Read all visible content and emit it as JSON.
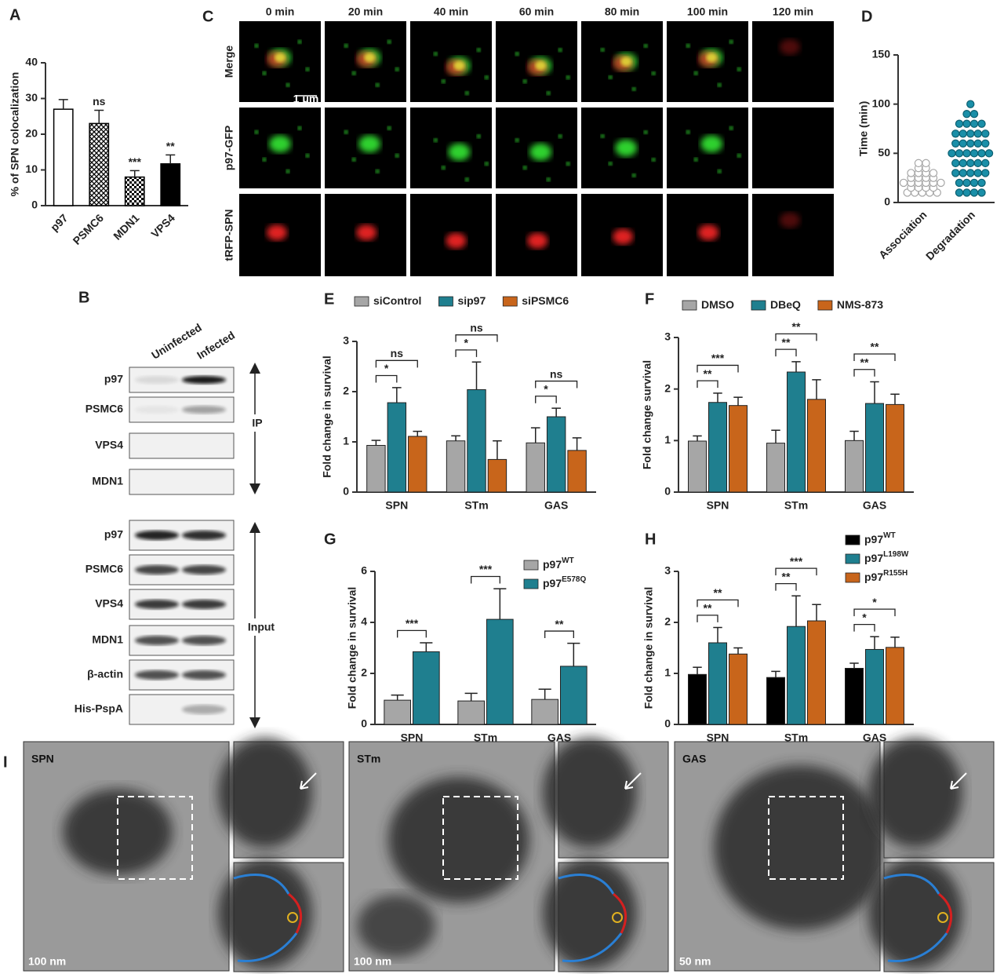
{
  "panel_labels": [
    "A",
    "B",
    "C",
    "D",
    "E",
    "F",
    "G",
    "H",
    "I"
  ],
  "blot": {
    "columns": [
      "Uninfected",
      "Infected"
    ],
    "ip_rows": [
      "p97",
      "PSMC6",
      "VPS4",
      "MDN1"
    ],
    "input_rows": [
      "p97",
      "PSMC6",
      "VPS4",
      "MDN1",
      "β-actin",
      "His-PspA"
    ],
    "ip_label": "IP",
    "input_label": "Input"
  },
  "microscopy": {
    "times": [
      "0 min",
      "20 min",
      "40 min",
      "60 min",
      "80 min",
      "100 min",
      "120 min"
    ],
    "rows": [
      "Merge",
      "p97-GFP",
      "tRFP-SPN"
    ],
    "scale_bar": "1 μm"
  },
  "electron_microscopy": {
    "panels": [
      {
        "label": "SPN",
        "scale_bar": "100 nm"
      },
      {
        "label": "STm",
        "scale_bar": "100 nm"
      },
      {
        "label": "GAS",
        "scale_bar": "50 nm"
      }
    ]
  },
  "chart_data": [
    {
      "type": "bar",
      "ylabel": "% of SPN colocalization",
      "categories": [
        "p97",
        "PSMC6",
        "MDN1",
        "VPS4"
      ],
      "values": [
        27,
        23,
        8,
        11.7
      ],
      "errors": [
        2.7,
        3.7,
        1.8,
        2.5
      ],
      "color": "#000000",
      "patterns": [
        "none",
        "crosshatch",
        "checker",
        "solid"
      ],
      "annotations": [
        {
          "category": "PSMC6",
          "text": "ns"
        },
        {
          "category": "MDN1",
          "text": "***"
        },
        {
          "category": "VPS4",
          "text": "**"
        }
      ],
      "ylim": [
        0,
        40
      ],
      "yticks": [
        0,
        10,
        20,
        30,
        40
      ],
      "rotate_labels": true
    },
    {
      "type": "strip",
      "ylabel": "Time (min)",
      "categories": [
        "Association",
        "Degradation"
      ],
      "values": [
        [
          10,
          10,
          10,
          10,
          10,
          15,
          15,
          15,
          15,
          20,
          20,
          20,
          20,
          20,
          20,
          25,
          25,
          25,
          25,
          30,
          30,
          30,
          30,
          35,
          35,
          40,
          40
        ],
        [
          10,
          10,
          10,
          10,
          20,
          20,
          20,
          20,
          30,
          30,
          30,
          30,
          30,
          40,
          40,
          40,
          40,
          40,
          50,
          50,
          50,
          50,
          50,
          50,
          60,
          60,
          60,
          60,
          60,
          70,
          70,
          70,
          70,
          70,
          80,
          80,
          80,
          80,
          90,
          90,
          100
        ]
      ],
      "colors": [
        "#a6a6a6",
        "#1a8fa8"
      ],
      "markers": [
        "open",
        "filled"
      ],
      "ylim": [
        0,
        150
      ],
      "yticks": [
        0,
        50,
        100,
        150
      ],
      "rotate_labels": true
    },
    {
      "type": "bar",
      "ylabel": "Fold change in survival",
      "categories": [
        "SPN",
        "STm",
        "GAS"
      ],
      "series": [
        {
          "name": "siControl",
          "color": "#a6a6a6",
          "values": [
            0.93,
            1.02,
            0.98
          ],
          "errors": [
            0.1,
            0.1,
            0.3
          ]
        },
        {
          "name": "sip97",
          "color": "#1f7f8f",
          "values": [
            1.78,
            2.04,
            1.5
          ],
          "errors": [
            0.3,
            0.55,
            0.17
          ]
        },
        {
          "name": "siPSMC6",
          "color": "#c8651b",
          "values": [
            1.11,
            0.65,
            0.83
          ],
          "errors": [
            0.1,
            0.37,
            0.25
          ]
        }
      ],
      "brackets": [
        {
          "category": "SPN",
          "from": "siControl",
          "to": "sip97",
          "label": "*"
        },
        {
          "category": "SPN",
          "from": "siControl",
          "to": "siPSMC6",
          "label": "ns"
        },
        {
          "category": "STm",
          "from": "siControl",
          "to": "sip97",
          "label": "*"
        },
        {
          "category": "STm",
          "from": "siControl",
          "to": "siPSMC6",
          "label": "ns"
        },
        {
          "category": "GAS",
          "from": "siControl",
          "to": "sip97",
          "label": "*"
        },
        {
          "category": "GAS",
          "from": "siControl",
          "to": "siPSMC6",
          "label": "ns"
        }
      ],
      "ylim": [
        0,
        3
      ],
      "yticks": [
        0,
        1,
        2,
        3
      ],
      "legend": "top"
    },
    {
      "type": "bar",
      "ylabel": "Fold change survival",
      "categories": [
        "SPN",
        "STm",
        "GAS"
      ],
      "series": [
        {
          "name": "DMSO",
          "color": "#a6a6a6",
          "values": [
            0.99,
            0.95,
            1.0
          ],
          "errors": [
            0.1,
            0.25,
            0.18
          ]
        },
        {
          "name": "DBeQ",
          "color": "#1f7f8f",
          "values": [
            1.74,
            2.33,
            1.72
          ],
          "errors": [
            0.18,
            0.2,
            0.42
          ]
        },
        {
          "name": "NMS-873",
          "color": "#c8651b",
          "values": [
            1.68,
            1.8,
            1.7
          ],
          "errors": [
            0.16,
            0.38,
            0.2
          ]
        }
      ],
      "brackets": [
        {
          "category": "SPN",
          "from": "DMSO",
          "to": "DBeQ",
          "label": "**"
        },
        {
          "category": "SPN",
          "from": "DMSO",
          "to": "NMS-873",
          "label": "***"
        },
        {
          "category": "STm",
          "from": "DMSO",
          "to": "DBeQ",
          "label": "**"
        },
        {
          "category": "STm",
          "from": "DMSO",
          "to": "NMS-873",
          "label": "**"
        },
        {
          "category": "GAS",
          "from": "DMSO",
          "to": "DBeQ",
          "label": "**"
        },
        {
          "category": "GAS",
          "from": "DMSO",
          "to": "NMS-873",
          "label": "**"
        }
      ],
      "ylim": [
        0,
        3
      ],
      "yticks": [
        0,
        1,
        2,
        3
      ],
      "legend": "top"
    },
    {
      "type": "bar",
      "ylabel": "Fold change in survival",
      "categories": [
        "SPN",
        "STm",
        "GAS"
      ],
      "series": [
        {
          "name": "p97",
          "sup": "WT",
          "color": "#a6a6a6",
          "values": [
            0.95,
            0.92,
            0.98
          ],
          "errors": [
            0.2,
            0.3,
            0.4
          ]
        },
        {
          "name": "p97",
          "sup": "E578Q",
          "color": "#1f7f8f",
          "values": [
            2.85,
            4.12,
            2.28
          ],
          "errors": [
            0.35,
            1.2,
            0.9
          ]
        }
      ],
      "brackets": [
        {
          "category": "SPN",
          "from": 0,
          "to": 1,
          "label": "***"
        },
        {
          "category": "STm",
          "from": 0,
          "to": 1,
          "label": "***"
        },
        {
          "category": "GAS",
          "from": 0,
          "to": 1,
          "label": "**"
        }
      ],
      "ylim": [
        0,
        6
      ],
      "yticks": [
        0,
        2,
        4,
        6
      ],
      "legend": "upper right"
    },
    {
      "type": "bar",
      "ylabel": "Fold change in survival",
      "categories": [
        "SPN",
        "STm",
        "GAS"
      ],
      "series": [
        {
          "name": "p97",
          "sup": "WT",
          "color": "#000000",
          "values": [
            0.98,
            0.92,
            1.1
          ],
          "errors": [
            0.14,
            0.12,
            0.1
          ]
        },
        {
          "name": "p97",
          "sup": "L198W",
          "color": "#1f7f8f",
          "values": [
            1.6,
            1.92,
            1.47
          ],
          "errors": [
            0.3,
            0.6,
            0.25
          ]
        },
        {
          "name": "p97",
          "sup": "R155H",
          "color": "#c8651b",
          "values": [
            1.38,
            2.03,
            1.51
          ],
          "errors": [
            0.12,
            0.32,
            0.2
          ]
        }
      ],
      "brackets": [
        {
          "category": "SPN",
          "from": 0,
          "to": 1,
          "label": "**"
        },
        {
          "category": "SPN",
          "from": 0,
          "to": 2,
          "label": "**"
        },
        {
          "category": "STm",
          "from": 0,
          "to": 1,
          "label": "**"
        },
        {
          "category": "STm",
          "from": 0,
          "to": 2,
          "label": "***"
        },
        {
          "category": "GAS",
          "from": 0,
          "to": 1,
          "label": "*"
        },
        {
          "category": "GAS",
          "from": 0,
          "to": 2,
          "label": "*"
        }
      ],
      "ylim": [
        0,
        3
      ],
      "yticks": [
        0,
        1,
        2,
        3
      ],
      "legend": "upper right"
    }
  ]
}
